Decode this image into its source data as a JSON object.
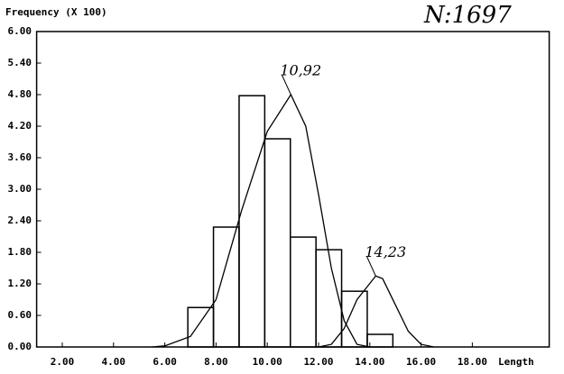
{
  "chart_data": {
    "type": "histogram",
    "title": "N:1697",
    "y_label": "Frequency  (X  100)",
    "x_label": "Length",
    "bins": [
      6.9,
      7.9,
      8.9,
      9.9,
      10.9,
      11.9,
      12.9,
      13.9,
      14.9
    ],
    "counts": [
      0.75,
      2.28,
      4.78,
      3.96,
      2.09,
      1.85,
      1.06,
      0.24
    ],
    "color": "#000000",
    "curves": [
      {
        "x": [
          5.5,
          6,
          7,
          8,
          9,
          10,
          10.92,
          11.5,
          12,
          12.5,
          13,
          13.5,
          14
        ],
        "values": [
          0,
          0.02,
          0.2,
          0.9,
          2.6,
          4.1,
          4.8,
          4.2,
          2.9,
          1.5,
          0.5,
          0.05,
          0
        ]
      },
      {
        "x": [
          12,
          12.5,
          13,
          13.5,
          14.23,
          14.5,
          15,
          15.5,
          16,
          16.5
        ],
        "values": [
          0,
          0.05,
          0.35,
          0.9,
          1.35,
          1.3,
          0.8,
          0.3,
          0.05,
          0
        ]
      }
    ],
    "annotations": [
      {
        "text": "10,92",
        "x": 10.92,
        "y": 4.8
      },
      {
        "text": "14,23",
        "x": 14.23,
        "y": 1.35
      }
    ],
    "xlim": [
      1,
      21
    ],
    "ylim": [
      0,
      6
    ],
    "xticks": [
      {
        "value": 2,
        "label": "2.00"
      },
      {
        "value": 4,
        "label": "4.00"
      },
      {
        "value": 6,
        "label": "6.00"
      },
      {
        "value": 8,
        "label": "8.00"
      },
      {
        "value": 10,
        "label": "10.00"
      },
      {
        "value": 12,
        "label": "12.00"
      },
      {
        "value": 14,
        "label": "14.00"
      },
      {
        "value": 16,
        "label": "16.00"
      },
      {
        "value": 18,
        "label": "18.00"
      }
    ],
    "yticks": [
      {
        "value": 0,
        "label": "0.00"
      },
      {
        "value": 0.6,
        "label": "0.60"
      },
      {
        "value": 1.2,
        "label": "1.20"
      },
      {
        "value": 1.8,
        "label": "1.80"
      },
      {
        "value": 2.4,
        "label": "2.40"
      },
      {
        "value": 3,
        "label": "3.00"
      },
      {
        "value": 3.6,
        "label": "3.60"
      },
      {
        "value": 4.2,
        "label": "4.20"
      },
      {
        "value": 4.8,
        "label": "4.80"
      },
      {
        "value": 5.4,
        "label": "5.40"
      },
      {
        "value": 6,
        "label": "6.00"
      }
    ]
  }
}
